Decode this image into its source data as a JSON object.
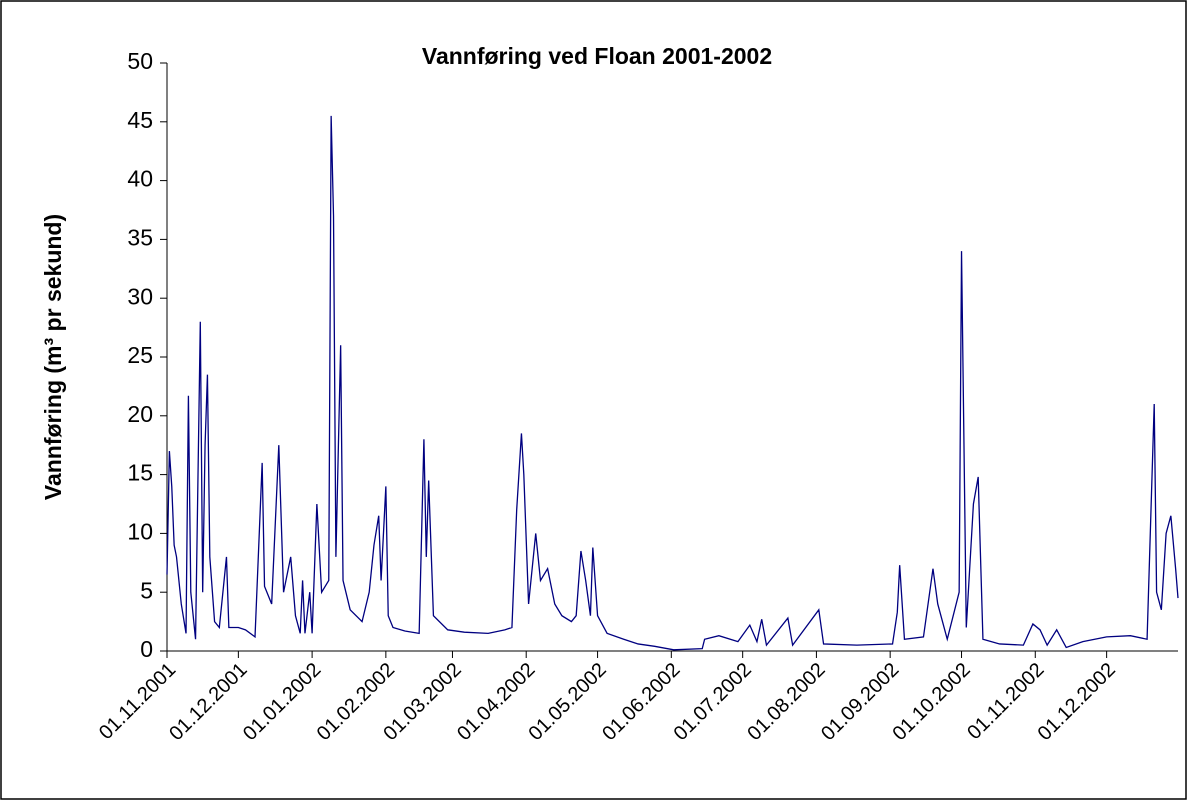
{
  "chart_data": {
    "type": "line",
    "title": "Vannføring ved Floan 2001-2002",
    "y_label": "Vannføring (m³ pr sekund)",
    "xlim": [
      "2001-11-01",
      "2002-12-31"
    ],
    "xticks": [
      {
        "value": "2001-11-01",
        "label": "01.11.2001"
      },
      {
        "value": "2001-12-01",
        "label": "01.12.2001"
      },
      {
        "value": "2002-01-01",
        "label": "01.01.2002"
      },
      {
        "value": "2002-02-01",
        "label": "01.02.2002"
      },
      {
        "value": "2002-03-01",
        "label": "01.03.2002"
      },
      {
        "value": "2002-04-01",
        "label": "01.04.2002"
      },
      {
        "value": "2002-05-01",
        "label": "01.05.2002"
      },
      {
        "value": "2002-06-01",
        "label": "01.06.2002"
      },
      {
        "value": "2002-07-01",
        "label": "01.07.2002"
      },
      {
        "value": "2002-08-01",
        "label": "01.08.2002"
      },
      {
        "value": "2002-09-01",
        "label": "01.09.2002"
      },
      {
        "value": "2002-10-01",
        "label": "01.10.2002"
      },
      {
        "value": "2002-11-01",
        "label": "01.11.2002"
      },
      {
        "value": "2002-12-01",
        "label": "01.12.2002"
      }
    ],
    "ylim": [
      0,
      50
    ],
    "yticks": [
      0,
      5,
      10,
      15,
      20,
      25,
      30,
      35,
      40,
      45,
      50
    ],
    "color": "#000080",
    "x": [
      "2001-11-01",
      "2001-11-02",
      "2001-11-03",
      "2001-11-04",
      "2001-11-05",
      "2001-11-07",
      "2001-11-09",
      "2001-11-10",
      "2001-11-11",
      "2001-11-13",
      "2001-11-15",
      "2001-11-16",
      "2001-11-17",
      "2001-11-18",
      "2001-11-19",
      "2001-11-21",
      "2001-11-23",
      "2001-11-26",
      "2001-11-27",
      "2001-12-01",
      "2001-12-04",
      "2001-12-08",
      "2001-12-11",
      "2001-12-12",
      "2001-12-15",
      "2001-12-18",
      "2001-12-20",
      "2001-12-23",
      "2001-12-25",
      "2001-12-27",
      "2001-12-28",
      "2001-12-29",
      "2001-12-31",
      "2002-01-01",
      "2002-01-03",
      "2002-01-05",
      "2002-01-08",
      "2002-01-09",
      "2002-01-10",
      "2002-01-11",
      "2002-01-13",
      "2002-01-14",
      "2002-01-17",
      "2002-01-22",
      "2002-01-25",
      "2002-01-27",
      "2002-01-29",
      "2002-01-30",
      "2002-02-01",
      "2002-02-02",
      "2002-02-04",
      "2002-02-09",
      "2002-02-15",
      "2002-02-17",
      "2002-02-18",
      "2002-02-19",
      "2002-02-21",
      "2002-02-27",
      "2002-03-06",
      "2002-03-16",
      "2002-03-23",
      "2002-03-26",
      "2002-03-28",
      "2002-03-30",
      "2002-03-31",
      "2002-04-02",
      "2002-04-05",
      "2002-04-07",
      "2002-04-10",
      "2002-04-13",
      "2002-04-16",
      "2002-04-20",
      "2002-04-22",
      "2002-04-24",
      "2002-04-26",
      "2002-04-28",
      "2002-04-29",
      "2002-05-01",
      "2002-05-05",
      "2002-05-12",
      "2002-05-18",
      "2002-05-25",
      "2002-06-02",
      "2002-06-14",
      "2002-06-15",
      "2002-06-21",
      "2002-06-29",
      "2002-07-04",
      "2002-07-07",
      "2002-07-09",
      "2002-07-11",
      "2002-07-20",
      "2002-07-22",
      "2002-08-02",
      "2002-08-04",
      "2002-08-18",
      "2002-09-02",
      "2002-09-04",
      "2002-09-05",
      "2002-09-07",
      "2002-09-15",
      "2002-09-19",
      "2002-09-21",
      "2002-09-25",
      "2002-09-30",
      "2002-10-01",
      "2002-10-03",
      "2002-10-06",
      "2002-10-08",
      "2002-10-10",
      "2002-10-17",
      "2002-10-27",
      "2002-10-31",
      "2002-11-03",
      "2002-11-06",
      "2002-11-10",
      "2002-11-14",
      "2002-11-21",
      "2002-12-01",
      "2002-12-11",
      "2002-12-18",
      "2002-12-21",
      "2002-12-22",
      "2002-12-24",
      "2002-12-26",
      "2002-12-28",
      "2002-12-30",
      "2002-12-31"
    ],
    "values": [
      6.5,
      17,
      14,
      9,
      8,
      4,
      1.5,
      21.7,
      5,
      1,
      28,
      5,
      17.5,
      23.5,
      8,
      2.5,
      2,
      8,
      2,
      2,
      1.8,
      1.2,
      16,
      5.5,
      4,
      17.5,
      5,
      8,
      3,
      1.5,
      6,
      1.5,
      5,
      1.5,
      12.5,
      5,
      6,
      45.5,
      37,
      8,
      26,
      6,
      3.5,
      2.5,
      5,
      9,
      11.5,
      6,
      14,
      3,
      2,
      1.7,
      1.5,
      18,
      8,
      14.5,
      3,
      1.8,
      1.6,
      1.5,
      1.8,
      2,
      12,
      18.5,
      15,
      4,
      10,
      6,
      7,
      4,
      3,
      2.5,
      3,
      8.5,
      6,
      3,
      8.8,
      3,
      1.5,
      1,
      0.6,
      0.4,
      0.1,
      0.2,
      1,
      1.3,
      0.8,
      2.2,
      0.8,
      2.7,
      0.5,
      2.8,
      0.5,
      3.5,
      0.6,
      0.5,
      0.6,
      3.3,
      7.3,
      1,
      1.2,
      7,
      4,
      1,
      5,
      34,
      2,
      12.5,
      14.8,
      1,
      0.6,
      0.5,
      2.3,
      1.8,
      0.5,
      1.8,
      0.3,
      0.8,
      1.2,
      1.3,
      1,
      21,
      5,
      3.5,
      10,
      11.5,
      7,
      4.5
    ]
  }
}
